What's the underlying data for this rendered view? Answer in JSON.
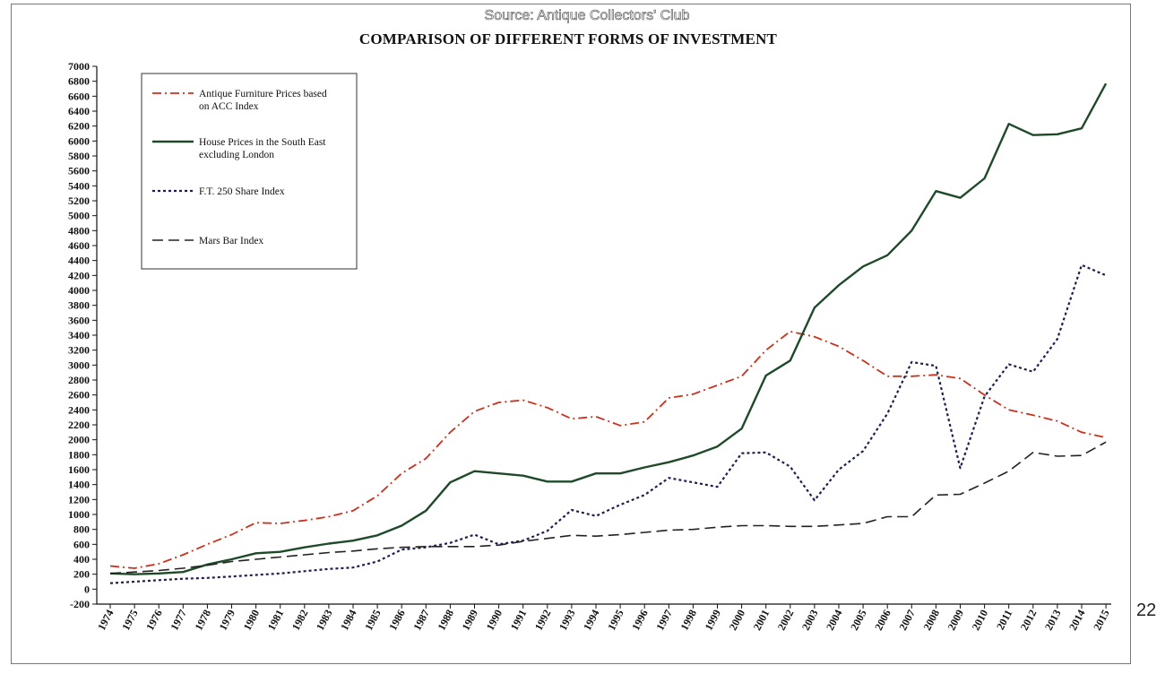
{
  "source": "Source: Antique Collectors' Club",
  "page_number": "22",
  "chart_data": {
    "type": "line",
    "title": "COMPARISON OF DIFFERENT FORMS OF  INVESTMENT",
    "xlabel": "",
    "ylabel": "",
    "ylim": [
      -200,
      7000
    ],
    "xlim": [
      1974,
      2015
    ],
    "y_ticks": [
      -200,
      0,
      200,
      400,
      600,
      800,
      1000,
      1200,
      1400,
      1600,
      1800,
      2000,
      2200,
      2400,
      2600,
      2800,
      3000,
      3200,
      3400,
      3600,
      3800,
      4000,
      4200,
      4400,
      4600,
      4800,
      5000,
      5200,
      5400,
      5600,
      5800,
      6000,
      6200,
      6400,
      6600,
      6800,
      7000
    ],
    "x": [
      1974,
      1975,
      1976,
      1977,
      1978,
      1979,
      1980,
      1981,
      1982,
      1983,
      1984,
      1985,
      1986,
      1987,
      1988,
      1989,
      1990,
      1991,
      1992,
      1993,
      1994,
      1995,
      1996,
      1997,
      1998,
      1999,
      2000,
      2001,
      2002,
      2003,
      2004,
      2005,
      2006,
      2007,
      2008,
      2009,
      2010,
      2011,
      2012,
      2013,
      2014,
      2015
    ],
    "grid": false,
    "legend_position": "top-left",
    "series": [
      {
        "name": "Antique Furniture Prices based on ACC Index",
        "legend_lines": [
          "Antique Furniture Prices based",
          "on ACC Index"
        ],
        "style": "dash-dot",
        "color": "#c8321e",
        "values": [
          310,
          280,
          340,
          460,
          600,
          730,
          890,
          880,
          920,
          970,
          1050,
          1250,
          1550,
          1750,
          2100,
          2380,
          2500,
          2530,
          2430,
          2280,
          2310,
          2190,
          2240,
          2560,
          2610,
          2730,
          2850,
          3200,
          3450,
          3380,
          3250,
          3060,
          2850,
          2850,
          2870,
          2820,
          2600,
          2400,
          2330,
          2250,
          2100,
          2030
        ]
      },
      {
        "name": "House Prices in the South East excluding London",
        "legend_lines": [
          "House Prices in the South East",
          "excluding London"
        ],
        "style": "solid",
        "color": "#1e4a2a",
        "values": [
          210,
          200,
          210,
          230,
          330,
          400,
          480,
          500,
          560,
          610,
          650,
          720,
          850,
          1050,
          1430,
          1580,
          1550,
          1520,
          1440,
          1440,
          1550,
          1550,
          1630,
          1700,
          1790,
          1910,
          2150,
          2860,
          3060,
          3770,
          4070,
          4320,
          4470,
          4800,
          5330,
          5240,
          5500,
          6230,
          6080,
          6090,
          6170,
          6770
        ]
      },
      {
        "name": "F.T. 250 Share Index",
        "legend_lines": [
          "F.T. 250 Share Index"
        ],
        "style": "dotted",
        "color": "#1c1f4e",
        "values": [
          80,
          100,
          120,
          140,
          150,
          170,
          190,
          210,
          240,
          270,
          290,
          370,
          530,
          560,
          620,
          730,
          600,
          650,
          780,
          1060,
          980,
          1130,
          1260,
          1490,
          1430,
          1370,
          1820,
          1830,
          1640,
          1190,
          1600,
          1850,
          2350,
          3040,
          2990,
          1620,
          2580,
          3010,
          2910,
          3350,
          4340,
          4200
        ]
      },
      {
        "name": "Mars Bar Index",
        "legend_lines": [
          "Mars Bar Index"
        ],
        "style": "dashed",
        "color": "#222222",
        "values": [
          210,
          230,
          250,
          280,
          320,
          370,
          400,
          430,
          460,
          490,
          510,
          540,
          560,
          570,
          570,
          570,
          590,
          640,
          680,
          720,
          710,
          730,
          760,
          790,
          800,
          830,
          850,
          850,
          840,
          840,
          860,
          880,
          970,
          970,
          1260,
          1270,
          1420,
          1580,
          1830,
          1780,
          1790,
          1970
        ]
      }
    ]
  }
}
